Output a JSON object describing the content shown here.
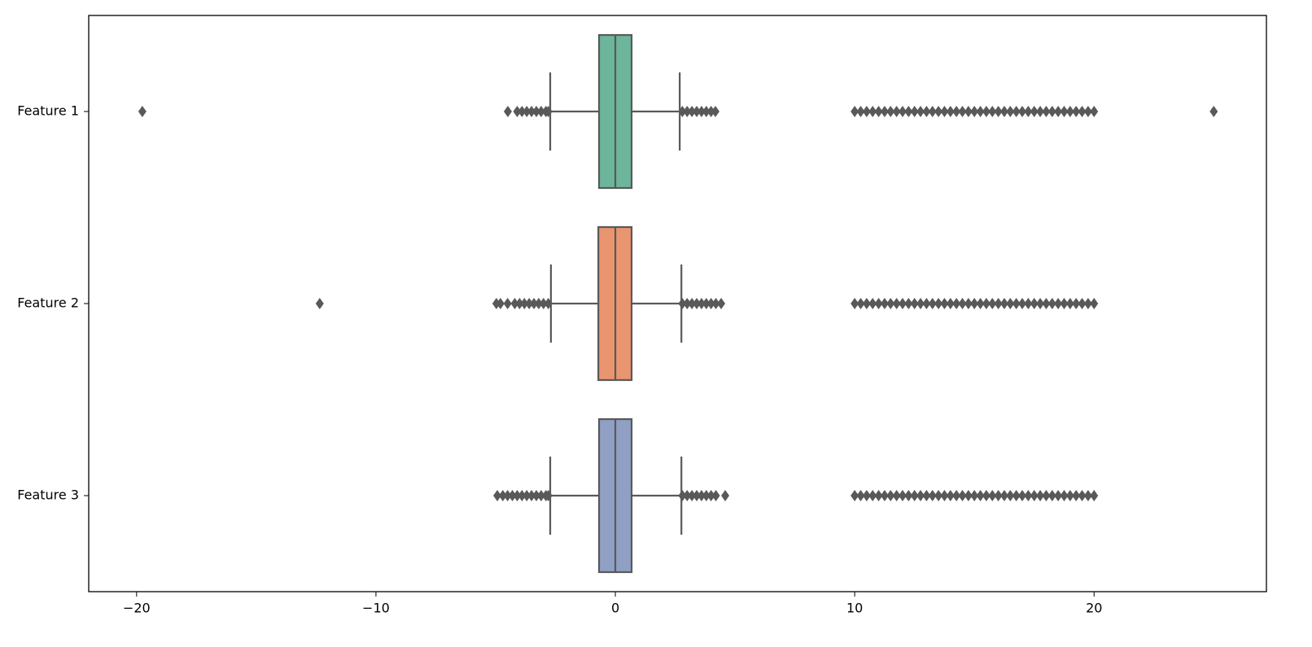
{
  "chart_data": {
    "type": "boxplot",
    "orientation": "horizontal",
    "categories": [
      "Feature 1",
      "Feature 2",
      "Feature 3"
    ],
    "xlim": [
      -22.0,
      27.2
    ],
    "xticks": [
      {
        "value": -20,
        "label": "−20"
      },
      {
        "value": -10,
        "label": "−10"
      },
      0,
      10,
      20
    ],
    "line_color": "#595959",
    "series": [
      {
        "color": "#6db59b",
        "whislo": -2.72,
        "q1": -0.68,
        "med": 0,
        "q3": 0.68,
        "whishi": 2.69,
        "fliers": [
          -19.76,
          -4.49,
          -4.1,
          -3.9,
          -3.7,
          -3.5,
          -3.3,
          -3.1,
          -2.9,
          -2.8,
          2.8,
          3.0,
          3.2,
          3.4,
          3.6,
          3.8,
          4.0,
          4.18,
          10,
          10.25,
          10.5,
          10.75,
          11,
          11.25,
          11.5,
          11.75,
          12,
          12.25,
          12.5,
          12.75,
          13,
          13.25,
          13.5,
          13.75,
          14,
          14.25,
          14.5,
          14.75,
          15,
          15.25,
          15.5,
          15.75,
          16,
          16.25,
          16.5,
          16.75,
          17,
          17.25,
          17.5,
          17.75,
          18,
          18.25,
          18.5,
          18.75,
          19,
          19.25,
          19.5,
          19.75,
          20,
          25.0
        ]
      },
      {
        "color": "#e9956f",
        "whislo": -2.69,
        "q1": -0.71,
        "med": 0,
        "q3": 0.68,
        "whishi": 2.76,
        "fliers": [
          -12.35,
          -4.97,
          -4.8,
          -4.5,
          -4.2,
          -4.0,
          -3.8,
          -3.6,
          -3.4,
          -3.2,
          -3.0,
          -2.8,
          2.8,
          3.0,
          3.2,
          3.4,
          3.6,
          3.8,
          4.0,
          4.2,
          4.42,
          10,
          10.25,
          10.5,
          10.75,
          11,
          11.25,
          11.5,
          11.75,
          12,
          12.25,
          12.5,
          12.75,
          13,
          13.25,
          13.5,
          13.75,
          14,
          14.25,
          14.5,
          14.75,
          15,
          15.25,
          15.5,
          15.75,
          16,
          16.25,
          16.5,
          16.75,
          17,
          17.25,
          17.5,
          17.75,
          18,
          18.25,
          18.5,
          18.75,
          19,
          19.25,
          19.5,
          19.75,
          20
        ]
      },
      {
        "color": "#8fa0c4",
        "whislo": -2.72,
        "q1": -0.68,
        "med": 0,
        "q3": 0.68,
        "whishi": 2.76,
        "fliers": [
          -4.93,
          -4.7,
          -4.5,
          -4.3,
          -4.1,
          -3.9,
          -3.7,
          -3.5,
          -3.3,
          -3.1,
          -2.9,
          -2.8,
          2.8,
          3.0,
          3.2,
          3.4,
          3.6,
          3.8,
          4.0,
          4.2,
          4.59,
          10,
          10.25,
          10.5,
          10.75,
          11,
          11.25,
          11.5,
          11.75,
          12,
          12.25,
          12.5,
          12.75,
          13,
          13.25,
          13.5,
          13.75,
          14,
          14.25,
          14.5,
          14.75,
          15,
          15.25,
          15.5,
          15.75,
          16,
          16.25,
          16.5,
          16.75,
          17,
          17.25,
          17.5,
          17.75,
          18,
          18.25,
          18.5,
          18.75,
          19,
          19.25,
          19.5,
          19.75,
          20
        ]
      }
    ]
  }
}
